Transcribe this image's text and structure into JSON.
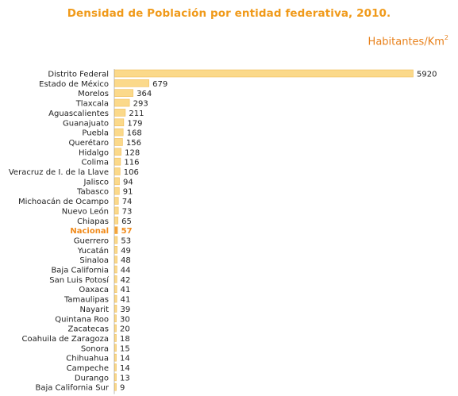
{
  "chart_data": {
    "type": "bar",
    "orientation": "horizontal",
    "title": "Densidad de Población por entidad federativa, 2010.",
    "unit_label": "Habitantes/Km",
    "unit_superscript": "2",
    "highlight_category": "Nacional",
    "xlim": [
      0,
      5920
    ],
    "colors": {
      "bar_fill": "#fbd98a",
      "bar_stroke": "#f1bd58",
      "highlight_fill": "#f5a23a",
      "highlight_text": "#f08a1a",
      "title": "#f09a1a",
      "unit": "#e8801a",
      "text": "#222222"
    },
    "categories": [
      "Distrito Federal",
      "Estado de México",
      "Morelos",
      "Tlaxcala",
      "Aguascalientes",
      "Guanajuato",
      "Puebla",
      "Querétaro",
      "Hidalgo",
      "Colima",
      "Veracruz de I. de la Llave",
      "Jalisco",
      "Tabasco",
      "Michoacán de Ocampo",
      "Nuevo León",
      "Chiapas",
      "Nacional",
      "Guerrero",
      "Yucatán",
      "Sinaloa",
      "Baja California",
      "San Luis Potosí",
      "Oaxaca",
      "Tamaulipas",
      "Nayarit",
      "Quintana Roo",
      "Zacatecas",
      "Coahuila de Zaragoza",
      "Sonora",
      "Chihuahua",
      "Campeche",
      "Durango",
      "Baja California Sur"
    ],
    "values": [
      5920,
      679,
      364,
      293,
      211,
      179,
      168,
      156,
      128,
      116,
      106,
      94,
      91,
      74,
      73,
      65,
      57,
      53,
      49,
      48,
      44,
      42,
      41,
      41,
      39,
      30,
      20,
      18,
      15,
      14,
      14,
      13,
      9
    ]
  }
}
